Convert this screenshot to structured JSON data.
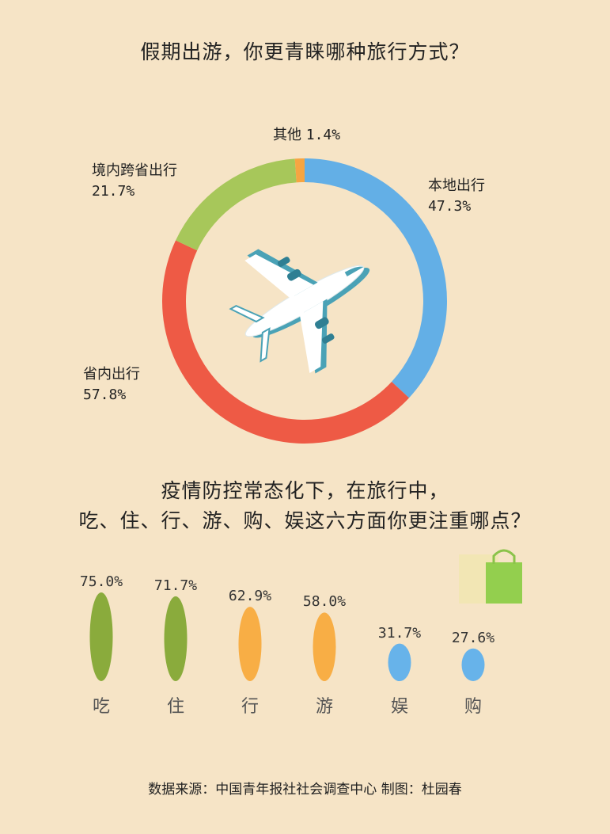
{
  "chart_data": [
    {
      "type": "pie",
      "title": "假期出游，你更青睐哪种旅行方式？",
      "slices": [
        {
          "label": "本地出行",
          "value_text": "47.3%",
          "value": 47.3,
          "color": "#63afe6"
        },
        {
          "label": "省内出行",
          "value_text": "57.8%",
          "value": 57.8,
          "color": "#ee5a45"
        },
        {
          "label": "境内跨省出行",
          "value_text": "21.7%",
          "value": 21.7,
          "color": "#a7c75a"
        },
        {
          "label": "其他",
          "value_text": "1.4%",
          "value": 1.4,
          "color": "#f6a542"
        }
      ]
    },
    {
      "type": "bar",
      "title_line1": "疫情防控常态化下，在旅行中，",
      "title_line2": "吃、住、行、游、购、娱这六方面你更注重哪点？",
      "categories": [
        "吃",
        "住",
        "行",
        "游",
        "娱",
        "购"
      ],
      "values": [
        75.0,
        71.7,
        62.9,
        58.0,
        31.7,
        27.6
      ],
      "value_labels": [
        "75.0%",
        "71.7%",
        "62.9%",
        "58.0%",
        "31.7%",
        "27.6%"
      ],
      "colors": [
        "#8aab3c",
        "#8aab3c",
        "#f8ae45",
        "#f8ae45",
        "#67b3ea",
        "#67b3ea"
      ]
    }
  ],
  "footer": "数据来源：中国青年报社社会调查中心   制图：杜园春"
}
